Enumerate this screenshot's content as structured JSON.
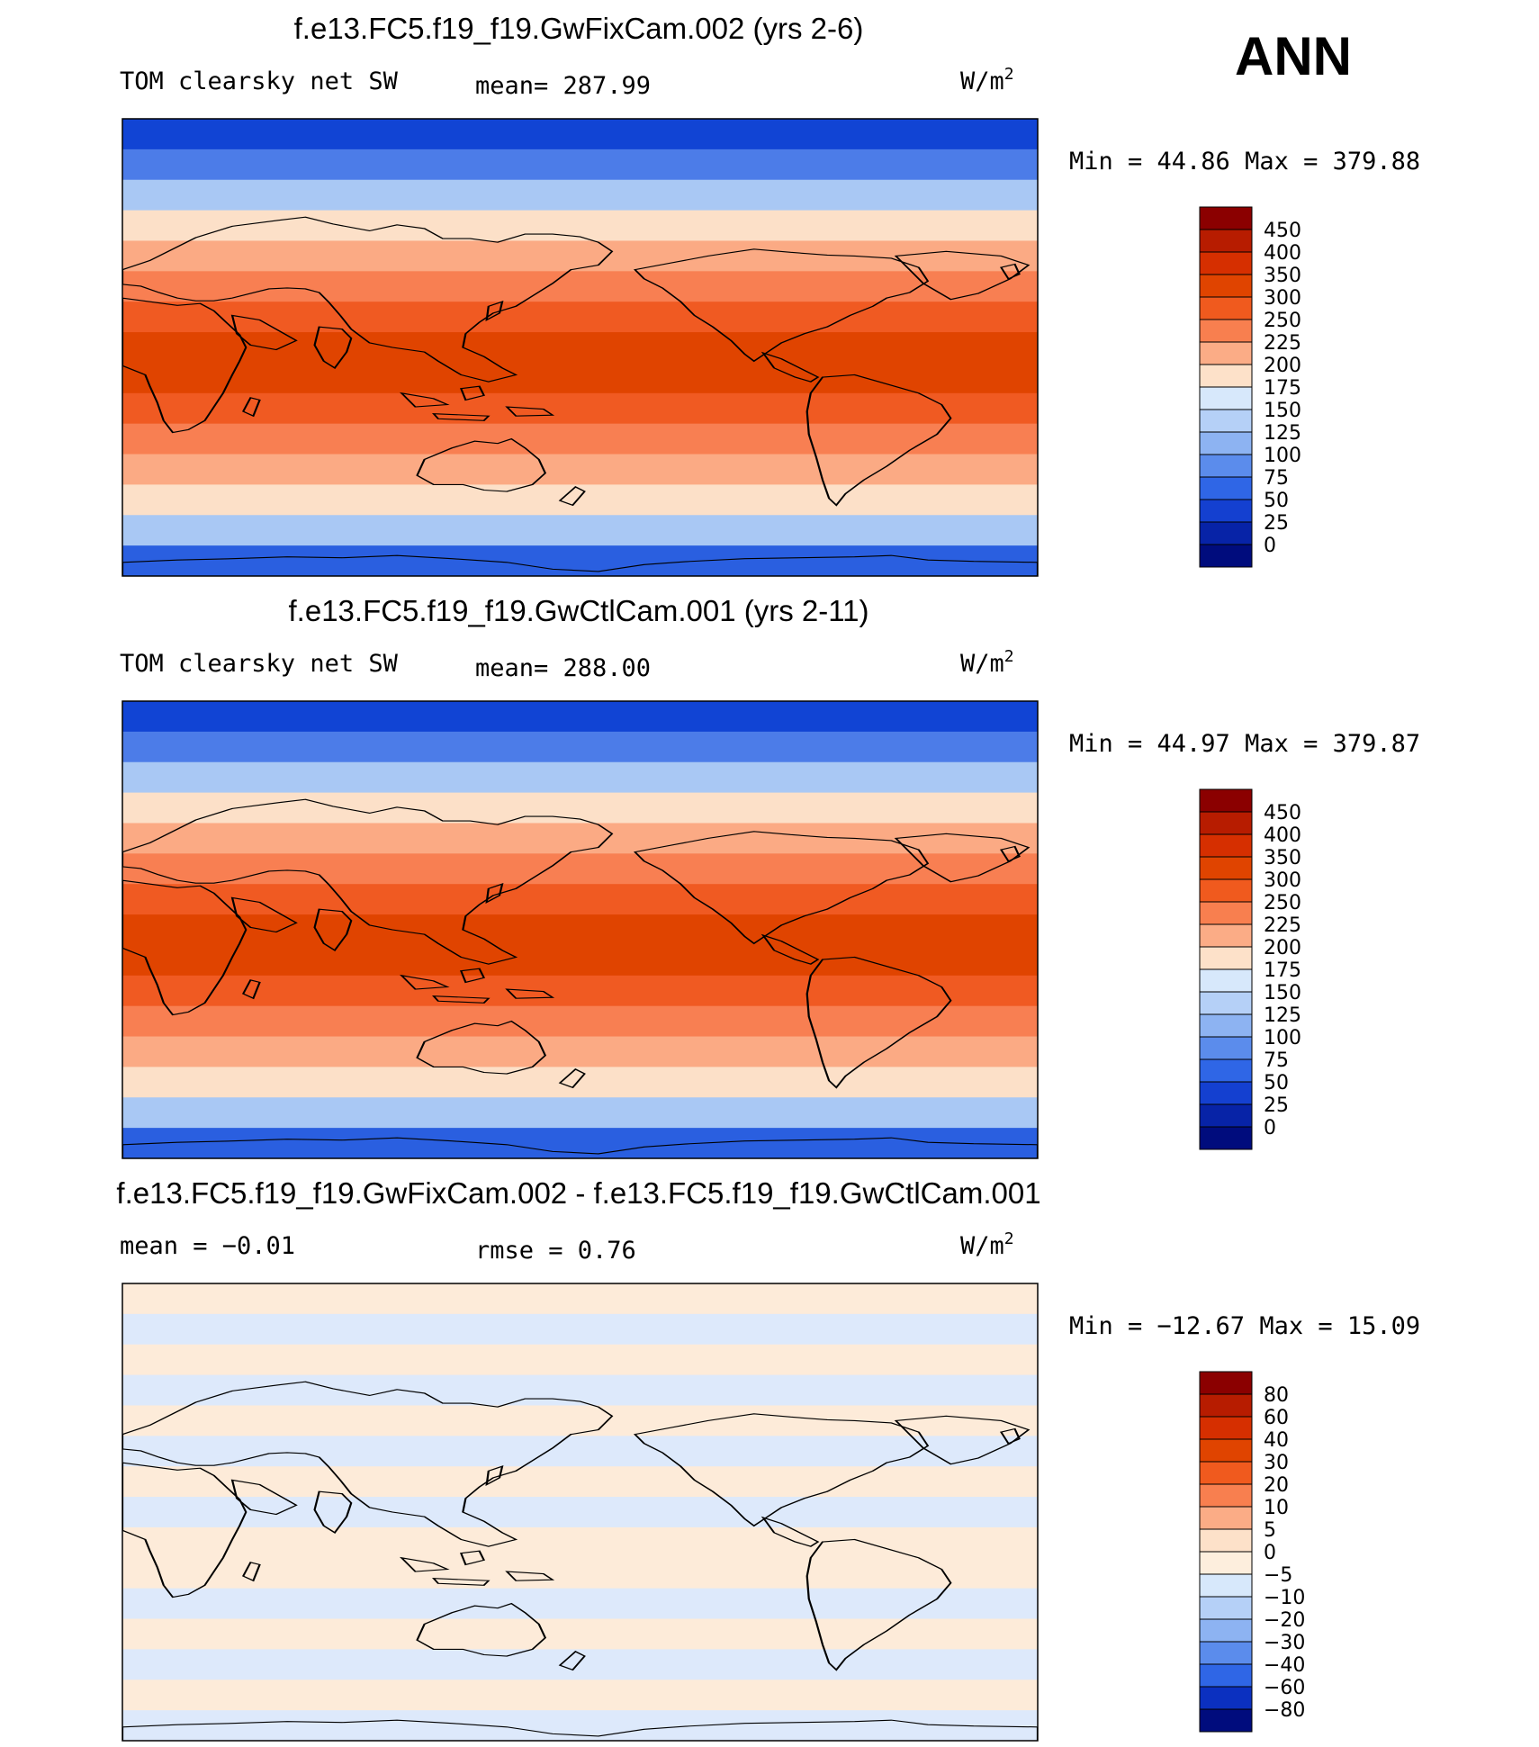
{
  "season": "ANN",
  "units_text": "W/m",
  "units_sup": "2",
  "land_color": "#000000",
  "panels": [
    {
      "id": "top",
      "title": "f.e13.FC5.f19_f19.GwFixCam.002 (yrs 2-6)",
      "left_label": "TOM clearsky net SW",
      "stat_label": "mean= 287.99",
      "minmax": "Min =   44.86 Max = 379.88",
      "colorbar": {
        "labels": [
          "450",
          "400",
          "350",
          "300",
          "250",
          "225",
          "200",
          "175",
          "150",
          "125",
          "100",
          "75",
          "50",
          "25",
          "0"
        ],
        "colors": [
          "#8b0000",
          "#b71c00",
          "#d62f00",
          "#e04400",
          "#f05a1e",
          "#f87f4f",
          "#fbac86",
          "#fde1c9",
          "#d7e8fb",
          "#b5d0f7",
          "#8db3f2",
          "#5b8cec",
          "#2f66e6",
          "#1440d0",
          "#0723a7",
          "#000c7d"
        ]
      },
      "field": {
        "bands": [
          "#1144d4",
          "#4c7ce8",
          "#a9c8f4",
          "#fce0c8",
          "#fbaa84",
          "#f87f52",
          "#f05a22",
          "#e04400",
          "#e04400",
          "#f05a22",
          "#f87f52",
          "#fbaa84",
          "#fce0c8",
          "#a9c8f4",
          "#2a5fe0"
        ]
      }
    },
    {
      "id": "middle",
      "title": "f.e13.FC5.f19_f19.GwCtlCam.001 (yrs 2-11)",
      "left_label": "TOM clearsky net SW",
      "stat_label": "mean= 288.00",
      "minmax": "Min =   44.97 Max = 379.87",
      "colorbar": {
        "labels": [
          "450",
          "400",
          "350",
          "300",
          "250",
          "225",
          "200",
          "175",
          "150",
          "125",
          "100",
          "75",
          "50",
          "25",
          "0"
        ],
        "colors": [
          "#8b0000",
          "#b71c00",
          "#d62f00",
          "#e04400",
          "#f05a1e",
          "#f87f4f",
          "#fbac86",
          "#fde1c9",
          "#d7e8fb",
          "#b5d0f7",
          "#8db3f2",
          "#5b8cec",
          "#2f66e6",
          "#1440d0",
          "#0723a7",
          "#000c7d"
        ]
      },
      "field": {
        "bands": [
          "#1144d4",
          "#4c7ce8",
          "#a9c8f4",
          "#fce0c8",
          "#fbaa84",
          "#f87f52",
          "#f05a22",
          "#e04400",
          "#e04400",
          "#f05a22",
          "#f87f52",
          "#fbaa84",
          "#fce0c8",
          "#a9c8f4",
          "#2a5fe0"
        ]
      }
    },
    {
      "id": "difference",
      "title": "f.e13.FC5.f19_f19.GwFixCam.002 - f.e13.FC5.f19_f19.GwCtlCam.001",
      "left_label": "mean =   −0.01",
      "stat_label": "rmse =    0.76",
      "minmax": "Min = −12.67 Max =   15.09",
      "colorbar": {
        "labels": [
          "80",
          "60",
          "40",
          "30",
          "20",
          "10",
          "5",
          "0",
          "−5",
          "−10",
          "−20",
          "−30",
          "−40",
          "−60",
          "−80"
        ],
        "colors": [
          "#8b0000",
          "#b71c00",
          "#d62f00",
          "#e04400",
          "#f05a1e",
          "#f87f4f",
          "#fbac86",
          "#fde1c9",
          "#fdeedd",
          "#d7e8fb",
          "#b5d0f7",
          "#8db3f2",
          "#5b8cec",
          "#2f66e6",
          "#0b30c0",
          "#000c7d"
        ]
      },
      "field": {
        "bands": [
          "#fdebd9",
          "#dde9fb",
          "#fdebd9",
          "#dde9fb",
          "#fdebd9",
          "#dde9fb",
          "#fdebd9",
          "#dde9fb",
          "#fdebd9",
          "#fdebd9",
          "#dde9fb",
          "#fdebd9",
          "#dde9fb",
          "#fdebd9",
          "#dde9fb"
        ]
      }
    }
  ]
}
